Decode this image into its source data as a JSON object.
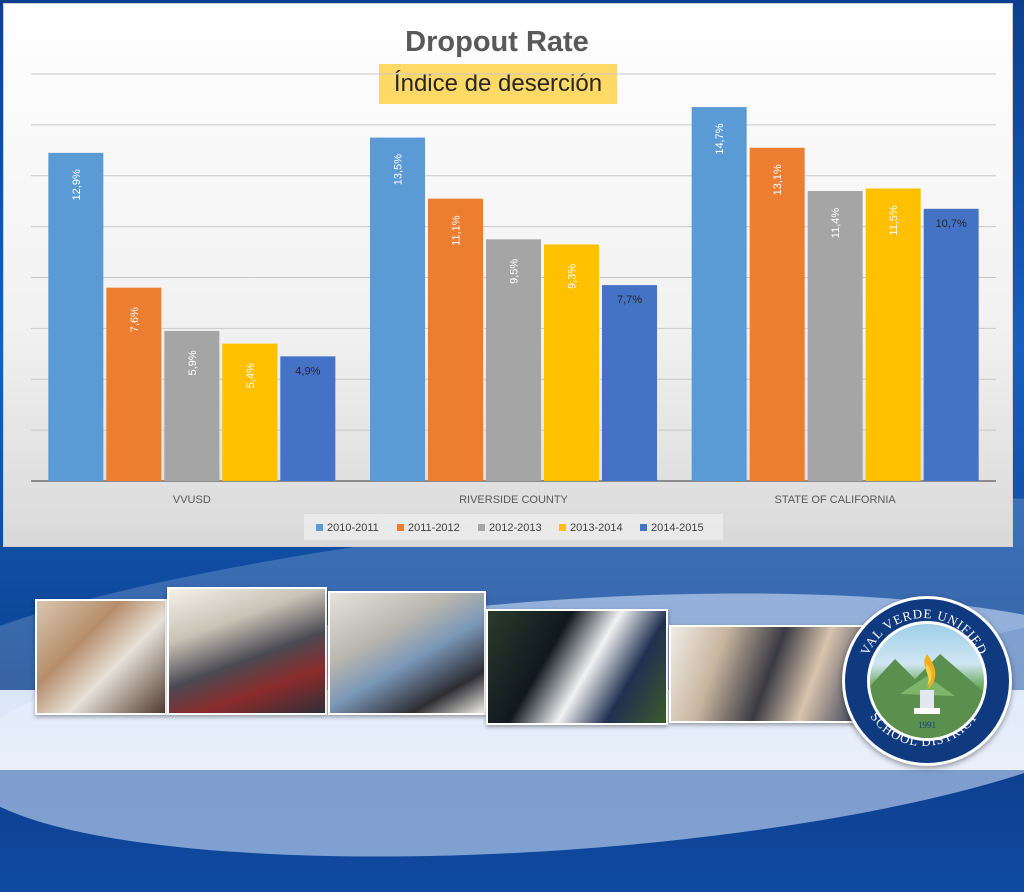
{
  "chart_data": {
    "type": "bar",
    "title": "Dropout Rate",
    "subtitle": "Índice de deserción",
    "categories": [
      "VVUSD",
      "RIVERSIDE COUNTY",
      "STATE OF CALIFORNIA"
    ],
    "series": [
      {
        "name": "2010-2011",
        "color": "#5b9bd5",
        "values": [
          12.9,
          13.5,
          14.7
        ],
        "labels": [
          "12,9%",
          "13,5%",
          "14,7%"
        ]
      },
      {
        "name": "2011-2012",
        "color": "#ed7d31",
        "values": [
          7.6,
          11.1,
          13.1
        ],
        "labels": [
          "7,6%",
          "11,1%",
          "13,1%"
        ]
      },
      {
        "name": "2012-2013",
        "color": "#a5a5a5",
        "values": [
          5.9,
          9.5,
          11.4
        ],
        "labels": [
          "5,9%",
          "9,5%",
          "11,4%"
        ]
      },
      {
        "name": "2013-2014",
        "color": "#ffc000",
        "values": [
          5.4,
          9.3,
          11.5
        ],
        "labels": [
          "5,4%",
          "9,3%",
          "11,5%"
        ]
      },
      {
        "name": "2014-2015",
        "color": "#4472c4",
        "values": [
          4.9,
          7.7,
          10.7
        ],
        "labels": [
          "4,9%",
          "7,7%",
          "10,7%"
        ]
      }
    ],
    "ylim": [
      0,
      16
    ],
    "grid": true,
    "legend": "bottom"
  },
  "footer": {
    "photos": [
      "students-classroom-photo",
      "computer-lab-photo",
      "science-lab-photo",
      "football-photo",
      "teacher-students-photo"
    ],
    "seal": {
      "top_text": "VAL VERDE UNIFIED",
      "bottom_text": "SCHOOL DISTRICT",
      "year": "1991"
    }
  }
}
